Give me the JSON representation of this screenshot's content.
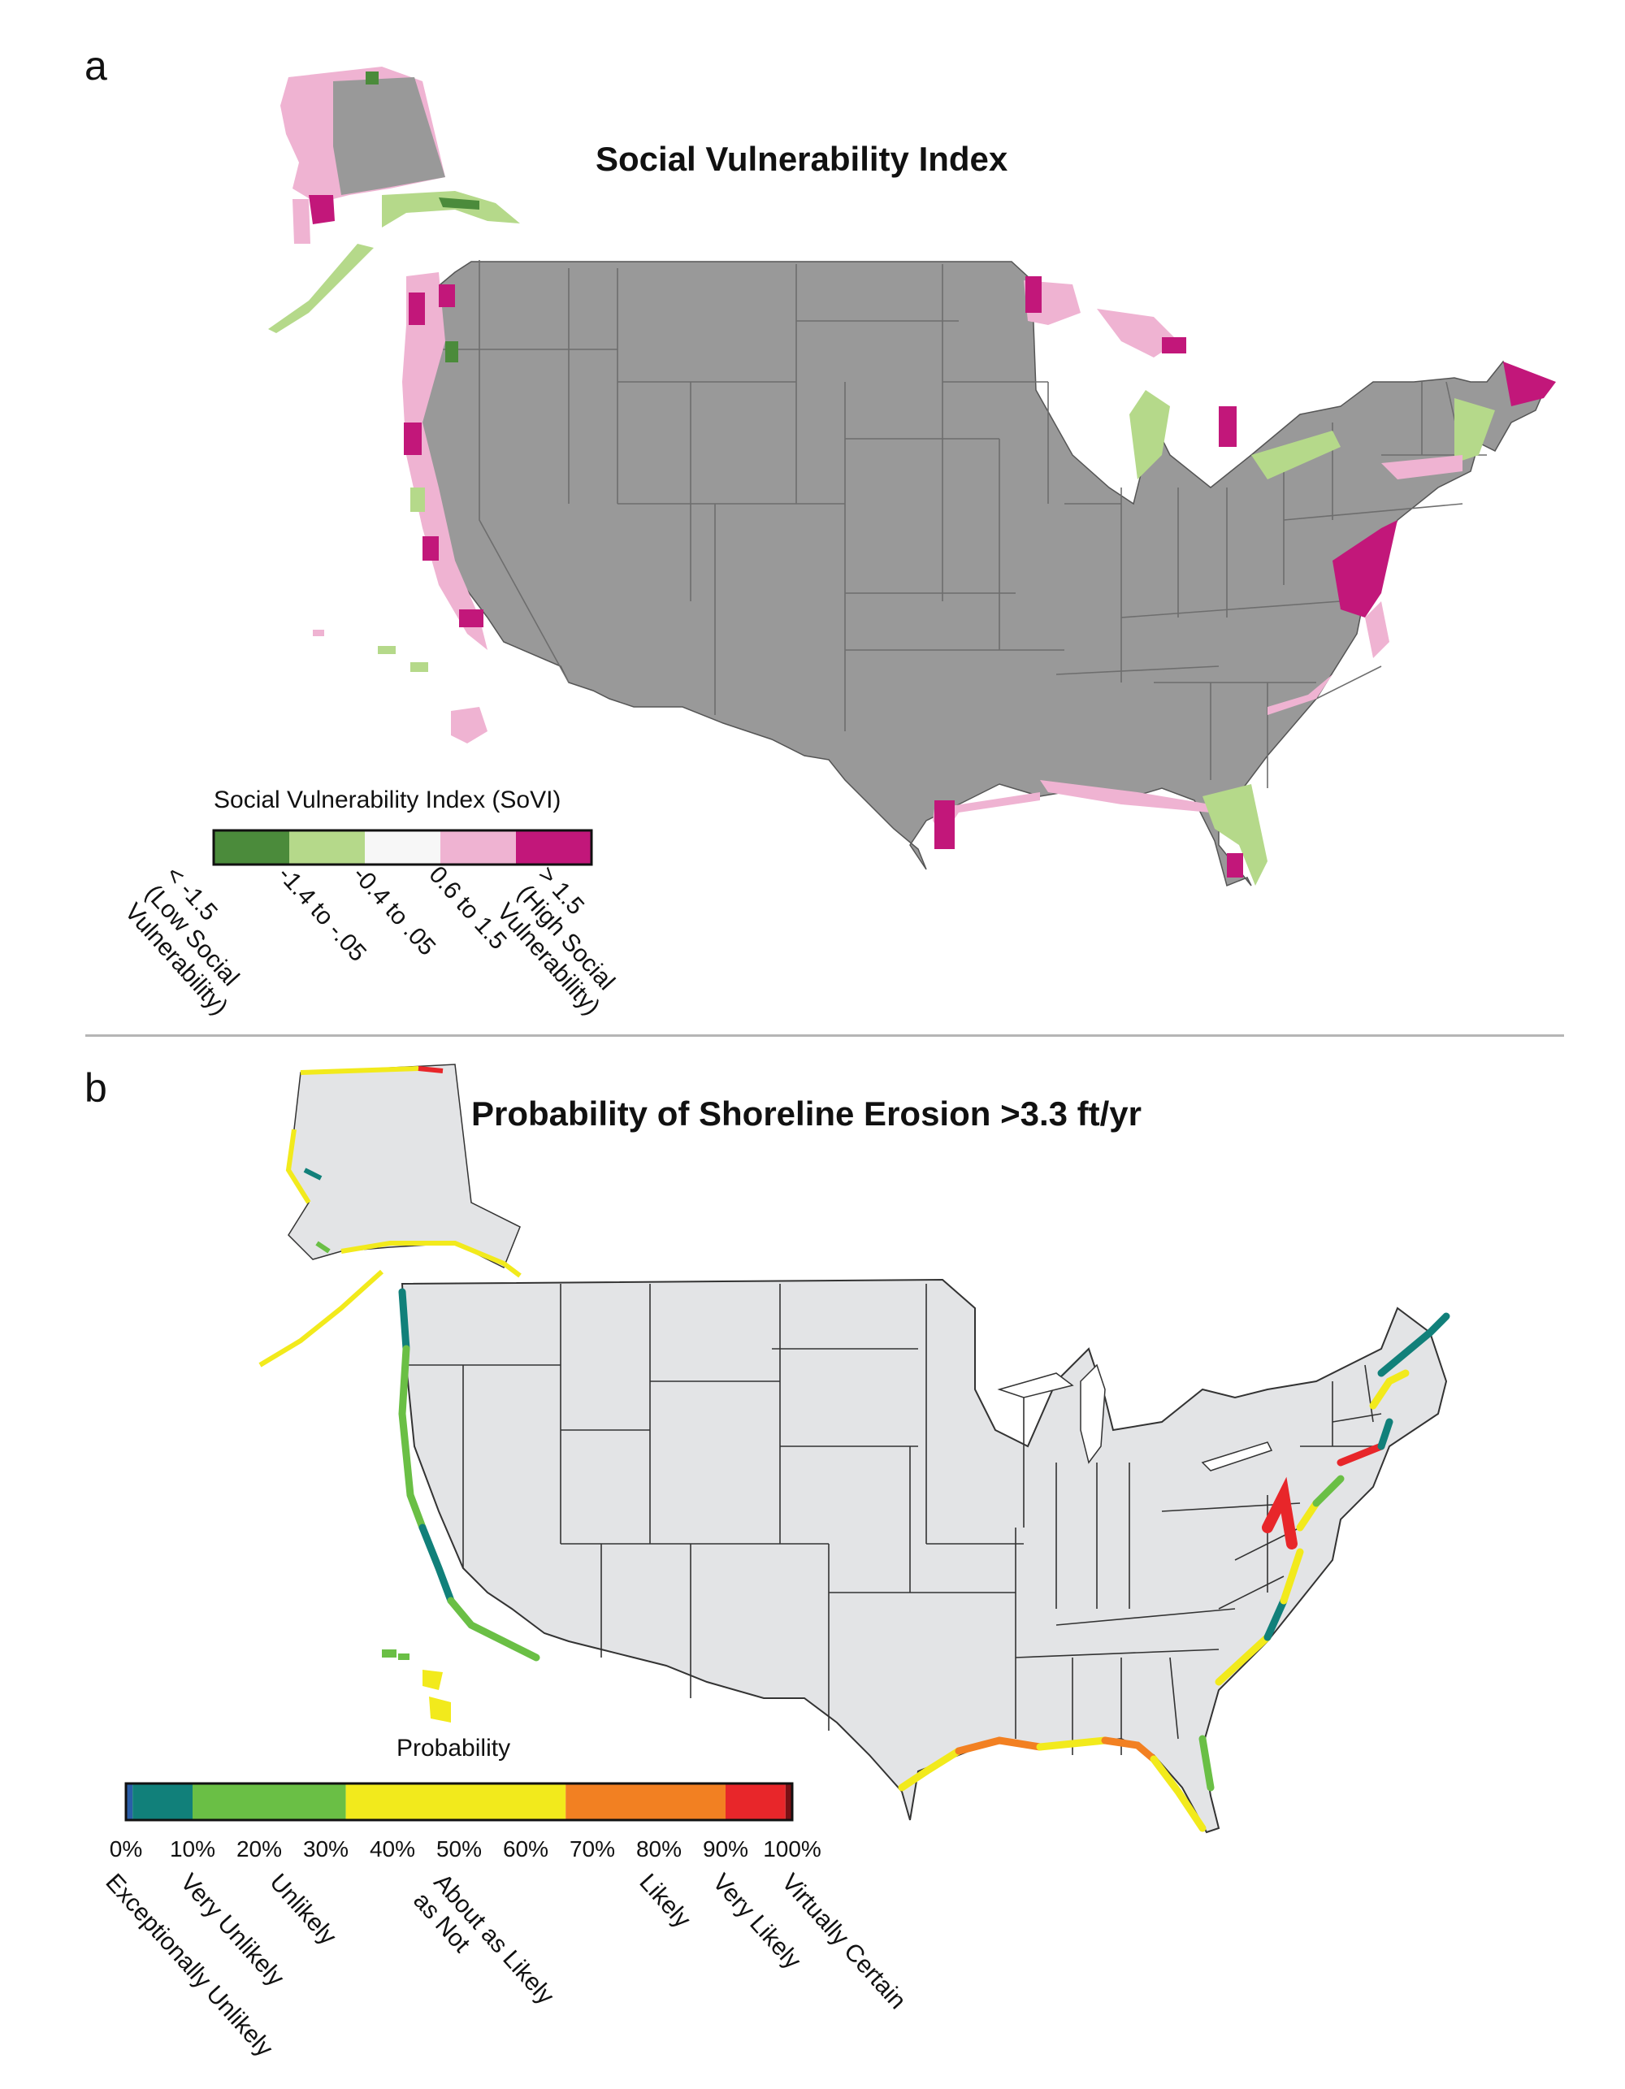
{
  "panel_a": {
    "letter": "a",
    "title": "Social Vulnerability Index",
    "legend": {
      "title": "Social Vulnerability Index (SoVI)",
      "classes": [
        {
          "label": "< -1.5\n(Low Social\nVulnerability)",
          "color": "#4b8b3b"
        },
        {
          "label": "-1.4 to -.05",
          "color": "#b5d98a"
        },
        {
          "label": "-0.4 to .05",
          "color": "#f7f7f7"
        },
        {
          "label": "0.6 to 1.5",
          "color": "#efb3d2"
        },
        {
          "label": "> 1.5\n(High Social\nVulnerability)",
          "color": "#c2177a"
        }
      ]
    },
    "land_color": "#999999"
  },
  "panel_b": {
    "letter": "b",
    "title": "Probability of Shoreline Erosion >3.3 ft/yr",
    "legend": {
      "title": "Probability",
      "ticks": [
        "0%",
        "10%",
        "20%",
        "30%",
        "40%",
        "50%",
        "60%",
        "70%",
        "80%",
        "90%",
        "100%"
      ],
      "categories": [
        {
          "label": "Exceptionally Unlikely",
          "color": "#2a5fa8",
          "range": [
            0,
            1
          ]
        },
        {
          "label": "Very Unlikely",
          "color": "#11807a",
          "range": [
            1,
            10
          ]
        },
        {
          "label": "Unlikely",
          "color": "#6abf45",
          "range": [
            10,
            33
          ]
        },
        {
          "label": "About as Likely\nas Not",
          "color": "#f2ea1c",
          "range": [
            33,
            66
          ]
        },
        {
          "label": "Likely",
          "color": "#f28022",
          "range": [
            66,
            90
          ]
        },
        {
          "label": "Very Likely",
          "color": "#e8262a",
          "range": [
            90,
            99
          ]
        },
        {
          "label": "Virtually Certain",
          "color": "#7a1014",
          "range": [
            99,
            100
          ]
        }
      ]
    },
    "land_color": "#e3e4e6"
  }
}
